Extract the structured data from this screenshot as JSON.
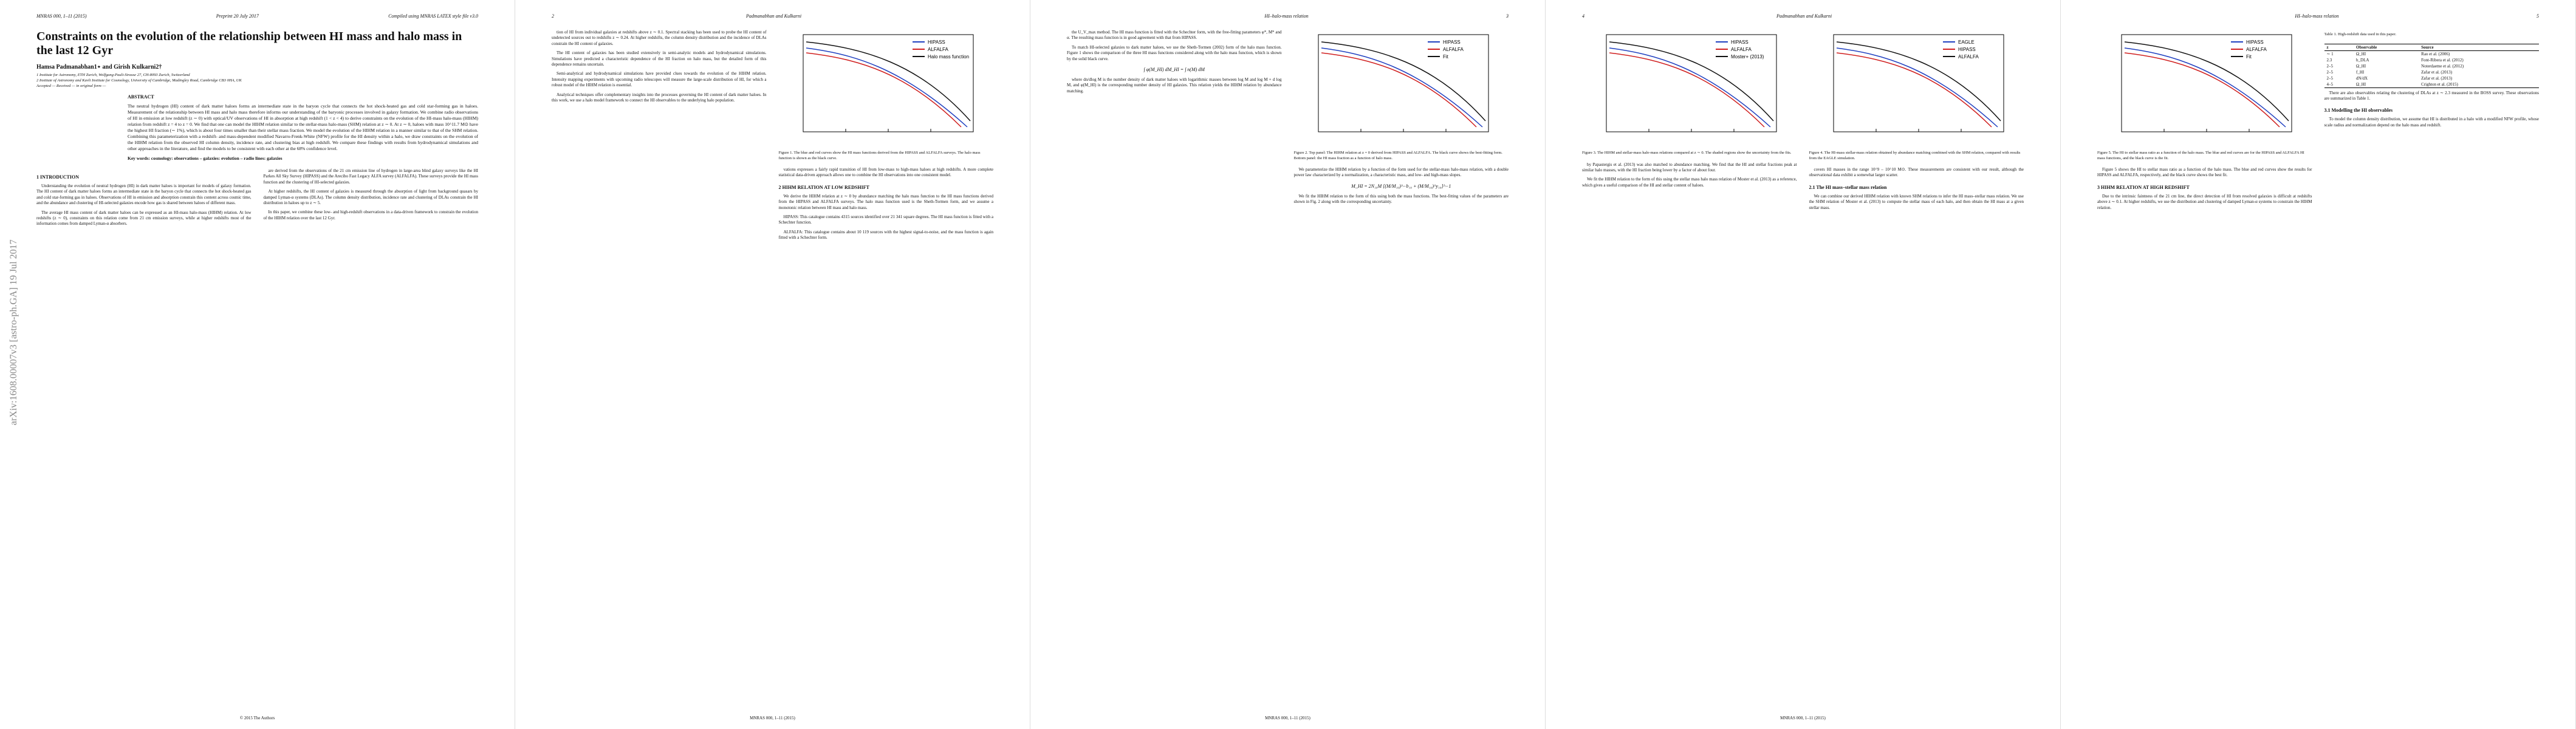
{
  "pages": [
    {
      "header": {
        "left": "MNRAS 000, 1–11 (2015)",
        "center": "Preprint 20 July 2017",
        "right": "Compiled using MNRAS LATEX style file v3.0"
      },
      "sidebar": "arXiv:1608.00007v3 [astro-ph.GA] 19 Jul 2017",
      "top": [
        {
          "title": "Constraints on the evolution of the relationship between HI mass and halo mass in the last 12 Gyr"
        },
        {
          "authors": "Hamsa Padmanabhan1⋆ and Girish Kulkarni2†"
        },
        {
          "affiliation": "1 Institute for Astronomy, ETH Zurich, Wolfgang-Pauli-Strasse 27, CH-8093 Zurich, Switzerland"
        },
        {
          "affiliation": "2 Institute of Astronomy and Kavli Institute for Cosmology, University of Cambridge, Madingley Road, Cambridge CB3 0HA, UK"
        },
        {
          "affiliation": "Accepted — Received — in original form —"
        },
        {
          "heading": "ABSTRACT"
        },
        {
          "abstract": "The neutral hydrogen (HI) content of dark matter haloes forms an intermediate state in the baryon cycle that connects the hot shock-heated gas and cold star-forming gas in haloes. Measurement of the relationship between HI mass and halo mass therefore informs our understanding of the baryonic processes involved in galaxy formation. We combine radio observations of HI in emission at low redshift (z ∼ 0) with optical/UV observations of HI in absorption at high redshift (1 < z < 4) to derive constraints on the evolution of the HI-mass halo-mass (HIHM) relation from redshift z = 4 to z = 0. We find that one can model the HIHM relation similar to the stellar-mass halo-mass (SHM) relation at z ∼ 0. At z ∼ 0, haloes with mass 10^11.7 M⊙ have the highest HI fraction (∼ 1%), which is about four times smaller than their stellar mass fraction. We model the evolution of the HIHM relation in a manner similar to that of the SHM relation. Combining this parameterization with a redshift- and mass-dependent modified Navarro-Frenk-White (NFW) profile for the HI density within a halo, we draw constraints on the evolution of the HIHM relation from the observed HI column density, incidence rate, and clustering bias at high redshift. We compare these findings with results from hydrodynamical simulations and other approaches in the literature, and find the models to be consistent with each other at the 68% confidence level."
        },
        {
          "keywords": "Key words: cosmology: observations – galaxies: evolution – radio lines: galaxies"
        }
      ],
      "columns": [
        [
          {
            "heading": "1 INTRODUCTION"
          },
          {
            "paragraph": "Understanding the evolution of neutral hydrogen (HI) in dark matter haloes is important for models of galaxy formation. The HI content of dark matter haloes forms an intermediate state in the baryon cycle that connects the hot shock-heated gas and cold star-forming gas in haloes. Observations of HI in emission and absorption constrain this content across cosmic time, and the abundance and clustering of HI-selected galaxies encode how gas is shared between haloes of different mass."
          },
          {
            "paragraph": "The average HI mass content of dark matter haloes can be expressed as an HI-mass halo-mass (HIHM) relation. At low redshifts (z ∼ 0), constraints on this relation come from 21 cm emission surveys, while at higher redshifts most of the information comes from damped Lyman-α absorbers."
          }
        ],
        [
          {
            "paragraph": "are derived from the observations of the 21 cm emission line of hydrogen in large-area blind galaxy surveys like the HI Parkes All Sky Survey (HIPASS) and the Arecibo Fast Legacy ALFA survey (ALFALFA). These surveys provide the HI mass function and the clustering of HI-selected galaxies."
          },
          {
            "paragraph": "At higher redshifts, the HI content of galaxies is measured through the absorption of light from background quasars by damped Lyman-α systems (DLAs). The column density distribution, incidence rate and clustering of DLAs constrain the HI distribution in haloes up to z ∼ 5."
          },
          {
            "paragraph": "In this paper, we combine these low- and high-redshift observations in a data-driven framework to constrain the evolution of the HIHM relation over the last 12 Gyr."
          }
        ]
      ],
      "footer": "© 2015 The Authors"
    },
    {
      "header": {
        "left": "2",
        "center": "Padmanabhan and Kulkarni",
        "right": ""
      },
      "top": [],
      "columns": [
        [
          {
            "paragraph": "tion of HI from individual galaxies at redshifts above z ∼ 0.1. Spectral stacking has been used to probe the HI content of undetected sources out to redshifts z ∼ 0.24. At higher redshifts, the column density distribution and the incidence of DLAs constrain the HI content of galaxies."
          },
          {
            "paragraph": "The HI content of galaxies has been studied extensively in semi-analytic models and hydrodynamical simulations. Simulations have predicted a characteristic dependence of the HI fraction on halo mass, but the detailed form of this dependence remains uncertain."
          },
          {
            "paragraph": "Semi-analytical and hydrodynamical simulations have provided clues towards the evolution of the HIHM relation. Intensity mapping experiments with upcoming radio telescopes will measure the large-scale distribution of HI, for which a robust model of the HIHM relation is essential."
          },
          {
            "paragraph": "Analytical techniques offer complementary insights into the processes governing the HI content of dark matter haloes. In this work, we use a halo model framework to connect the HI observables to the underlying halo population."
          }
        ],
        [
          {
            "figure": {
              "legend": [
                "HIPASS",
                "ALFALFA",
                "Halo mass function"
              ],
              "caption": "Figure 1. The blue and red curves show the HI mass functions derived from the HIPASS and ALFALFA surveys. The halo mass function is shown as the black curve."
            }
          },
          {
            "paragraph": "vations expresses a fairly rapid transition of HI from low-mass to high-mass haloes at high redshifts. A more complete statistical data-driven approach allows one to combine the HI observations into one consistent model."
          },
          {
            "heading": "2 HIHM RELATION AT LOW REDSHIFT"
          },
          {
            "paragraph": "We derive the HIHM relation at z ∼ 0 by abundance matching the halo mass function to the HI mass functions derived from the HIPASS and ALFALFA surveys. The halo mass function used is the Sheth-Tormen form, and we assume a monotonic relation between HI mass and halo mass."
          },
          {
            "paragraph": "HIPASS: This catalogue contains 4315 sources identified over 21 341 square degrees. The HI mass function is fitted with a Schechter function."
          },
          {
            "paragraph": "ALFALFA: This catalogue contains about 10 119 sources with the highest signal-to-noise, and the mass function is again fitted with a Schechter form."
          }
        ]
      ],
      "footer": "MNRAS 000, 1–11 (2015)"
    },
    {
      "header": {
        "left": "",
        "center": "HI–halo-mass relation",
        "right": "3"
      },
      "top": [],
      "columns": [
        [
          {
            "paragraph": "the U_V_max method. The HI mass function is fitted with the Schechter form, with the free-fitting parameters φ*, M* and α. The resulting mass function is in good agreement with that from HIPASS."
          },
          {
            "paragraph": "To match HI-selected galaxies to dark matter haloes, we use the Sheth-Tormen (2002) form of the halo mass function. Figure 1 shows the comparison of the three HI mass functions considered along with the halo mass function, which is shown by the solid black curve."
          },
          {
            "equation": "∫ φ(M_HI) dM_HI = ∫ n(M) dM"
          },
          {
            "paragraph": "where dn/dlog M is the number density of dark matter haloes with logarithmic masses between log M and log M + d log M, and φ(M_HI) is the corresponding number density of HI galaxies. This relation yields the HIHM relation by abundance matching."
          }
        ],
        [
          {
            "figure": {
              "legend": [
                "HIPASS",
                "ALFALFA",
                "Fit"
              ],
              "caption": "Figure 2. Top panel: The HIHM relation at z = 0 derived from HIPASS and ALFALFA. The black curve shows the best-fitting form. Bottom panel: the HI mass fraction as a function of halo mass."
            }
          },
          {
            "paragraph": "We parameterize the HIHM relation by a function of the form used for the stellar-mass halo-mass relation, with a double power law characterized by a normalization, a characteristic mass, and low- and high-mass slopes."
          },
          {
            "equation": "M_HI = 2N₁₀M [(M/M₁₀)^−b₁₀ + (M/M₁₀)^y₁₀]^−1"
          },
          {
            "paragraph": "We fit the HIHM relation to the form of this using both the mass functions. The best-fitting values of the parameters are shown in Fig. 2 along with the corresponding uncertainty."
          }
        ]
      ],
      "footer": "MNRAS 000, 1–11 (2015)"
    },
    {
      "header": {
        "left": "4",
        "center": "Padmanabhan and Kulkarni",
        "right": ""
      },
      "top": [],
      "columns": [
        [
          {
            "figure": {
              "legend": [
                "HIPASS",
                "ALFALFA",
                "Moster+ (2013)"
              ],
              "caption": "Figure 3. The HIHM and stellar-mass halo-mass relations compared at z ∼ 0. The shaded regions show the uncertainty from the fits."
            }
          },
          {
            "paragraph": "by Papastergis et al. (2013) was also matched to abundance matching. We find that the HI and stellar fractions peak at similar halo masses, with the HI fraction being lower by a factor of about four."
          },
          {
            "paragraph": "We fit the HIHM relation to the form of this using the stellar mass halo mass relation of Moster et al. (2013) as a reference, which gives a useful comparison of the HI and stellar content of haloes."
          }
        ],
        [
          {
            "figure": {
              "legend": [
                "EAGLE",
                "HIPASS",
                "ALFALFA"
              ],
              "caption": "Figure 4. The HI-mass stellar-mass relation obtained by abundance matching combined with the SHM relation, compared with results from the EAGLE simulation."
            }
          },
          {
            "paragraph": "covers HI masses in the range 10^9 – 10^10 M⊙. These measurements are consistent with our result, although the observational data exhibit a somewhat larger scatter."
          },
          {
            "heading": "2.1 The HI mass–stellar mass relation"
          },
          {
            "paragraph": "We can combine our derived HIHM relation with known SHM relations to infer the HI mass–stellar mass relation. We use the SHM relation of Moster et al. (2013) to compute the stellar mass of each halo, and then obtain the HI mass at a given stellar mass."
          }
        ]
      ],
      "footer": "MNRAS 000, 1–11 (2015)"
    },
    {
      "header": {
        "left": "",
        "center": "HI–halo-mass relation",
        "right": "5"
      },
      "top": [],
      "columns": [
        [
          {
            "figure": {
              "legend": [
                "HIPASS",
                "ALFALFA",
                "Fit"
              ],
              "caption": "Figure 5. The HI to stellar mass ratio as a function of the halo mass. The blue and red curves are for the HIPASS and ALFALFA HI mass functions, and the black curve is the fit."
            }
          },
          {
            "paragraph": "Figure 5 shows the HI to stellar mass ratio as a function of the halo mass. The blue and red curves show the results for HIPASS and ALFALFA, respectively, and the black curve shows the best fit."
          },
          {
            "heading": "3 HIHM RELATION AT HIGH REDSHIFT"
          },
          {
            "paragraph": "Due to the intrinsic faintness of the 21 cm line, the direct detection of HI from resolved galaxies is difficult at redshifts above z ∼ 0.1. At higher redshifts, we use the distribution and clustering of damped Lyman-α systems to constrain the HIHM relation."
          }
        ],
        [
          {
            "table": {
              "caption": "Table 1. High-redshift data used in this paper.",
              "header": [
                "z",
                "Observable",
                "Source"
              ],
              "rows": [
                [
                  "∼ 1",
                  "Ω_HI",
                  "Rao et al. (2006)"
                ],
                [
                  "2.3",
                  "b_DLA",
                  "Font-Ribera et al. (2012)"
                ],
                [
                  "2–5",
                  "Ω_HI",
                  "Noterdaeme et al. (2012)"
                ],
                [
                  "2–5",
                  "f_HI",
                  "Zafar et al. (2013)"
                ],
                [
                  "2–5",
                  "dN/dX",
                  "Zafar et al. (2013)"
                ],
                [
                  "4–5",
                  "Ω_HI",
                  "Crighton et al. (2015)"
                ]
              ]
            }
          },
          {
            "paragraph": "There are also observables relating the clustering of DLAs at z ∼ 2.3 measured in the BOSS survey. These observations are summarized in Table 1."
          },
          {
            "heading": "3.1 Modelling the HI observables"
          },
          {
            "paragraph": "To model the column density distribution, we assume that HI is distributed in a halo with a modified NFW profile, whose scale radius and normalization depend on the halo mass and redshift."
          }
        ]
      ],
      "footer": ""
    }
  ]
}
